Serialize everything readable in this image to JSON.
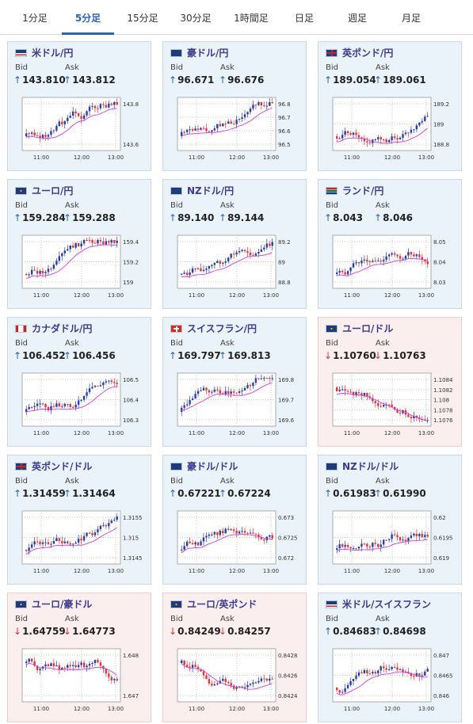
{
  "tabs": [
    {
      "label": "1分足",
      "active": false
    },
    {
      "label": "5分足",
      "active": true
    },
    {
      "label": "15分足",
      "active": false
    },
    {
      "label": "30分足",
      "active": false
    },
    {
      "label": "1時間足",
      "active": false
    },
    {
      "label": "日足",
      "active": false
    },
    {
      "label": "週足",
      "active": false
    },
    {
      "label": "月足",
      "active": false
    }
  ],
  "labels": {
    "bid": "Bid",
    "ask": "Ask"
  },
  "colors": {
    "up_arrow": "#2a63b2",
    "down_arrow": "#d23a3a",
    "up_card": "#eaf3fa",
    "down_card": "#fbeeee",
    "ma_line": "#d63be0",
    "candle_up": "#2a3fa6",
    "candle_down": "#e0353a"
  },
  "cards": [
    {
      "pair": "米ドル/円",
      "flag": "flag-us",
      "trend": "up",
      "bid": "143.810",
      "ask": "143.812",
      "chart_data": {
        "type": "candlestick",
        "x_ticks": [
          "11:00",
          "12:00",
          "13:00"
        ],
        "y_ticks": [
          "143.8",
          "143.6"
        ]
      }
    },
    {
      "pair": "豪ドル/円",
      "flag": "flag-au",
      "trend": "up",
      "bid": "96.671",
      "ask": "96.676",
      "chart_data": {
        "type": "candlestick",
        "x_ticks": [
          "11:00",
          "12:00",
          "13:00"
        ],
        "y_ticks": [
          "96.8",
          "96.7",
          "96.6",
          "96.5"
        ]
      }
    },
    {
      "pair": "英ポンド/円",
      "flag": "flag-gb",
      "trend": "up",
      "bid": "189.054",
      "ask": "189.061",
      "chart_data": {
        "type": "candlestick",
        "x_ticks": [
          "11:00",
          "12:00",
          "13:00"
        ],
        "y_ticks": [
          "189.2",
          "189",
          "188.8"
        ]
      }
    },
    {
      "pair": "ユーロ/円",
      "flag": "flag-eu",
      "trend": "up",
      "bid": "159.284",
      "ask": "159.288",
      "chart_data": {
        "type": "candlestick",
        "x_ticks": [
          "11:00",
          "12:00",
          "13:00"
        ],
        "y_ticks": [
          "159.4",
          "159.2",
          "159"
        ]
      }
    },
    {
      "pair": "NZドル/円",
      "flag": "flag-nz",
      "trend": "up",
      "bid": "89.140",
      "ask": "89.144",
      "chart_data": {
        "type": "candlestick",
        "x_ticks": [
          "11:00",
          "12:00",
          "13:00"
        ],
        "y_ticks": [
          "89.2",
          "89",
          "88.8"
        ]
      }
    },
    {
      "pair": "ランド/円",
      "flag": "flag-za",
      "trend": "up",
      "bid": "8.043",
      "ask": "8.046",
      "chart_data": {
        "type": "candlestick",
        "x_ticks": [
          "11:00",
          "12:00",
          "13:00"
        ],
        "y_ticks": [
          "8.05",
          "8.04",
          "8.03"
        ]
      }
    },
    {
      "pair": "カナダドル/円",
      "flag": "flag-ca",
      "trend": "up",
      "bid": "106.452",
      "ask": "106.456",
      "chart_data": {
        "type": "candlestick",
        "x_ticks": [
          "11:00",
          "12:00",
          "13:00"
        ],
        "y_ticks": [
          "106.5",
          "106.4",
          "106.3"
        ]
      }
    },
    {
      "pair": "スイスフラン/円",
      "flag": "flag-ch",
      "trend": "up",
      "bid": "169.797",
      "ask": "169.813",
      "chart_data": {
        "type": "candlestick",
        "x_ticks": [
          "11:00",
          "12:00",
          "13:00"
        ],
        "y_ticks": [
          "169.8",
          "169.7",
          "169.6"
        ]
      }
    },
    {
      "pair": "ユーロ/ドル",
      "flag": "flag-eu",
      "trend": "down",
      "bid": "1.10760",
      "ask": "1.10763",
      "chart_data": {
        "type": "candlestick",
        "x_ticks": [
          "11:00",
          "12:00",
          "13:00"
        ],
        "y_ticks": [
          "1.1084",
          "1.1082",
          "1.108",
          "1.1078",
          "1.1076"
        ]
      }
    },
    {
      "pair": "英ポンド/ドル",
      "flag": "flag-gb",
      "trend": "up",
      "bid": "1.31459",
      "ask": "1.31464",
      "chart_data": {
        "type": "candlestick",
        "x_ticks": [
          "11:00",
          "12:00",
          "13:00"
        ],
        "y_ticks": [
          "1.3155",
          "1.315",
          "1.3145"
        ]
      }
    },
    {
      "pair": "豪ドル/ドル",
      "flag": "flag-au",
      "trend": "up",
      "bid": "0.67221",
      "ask": "0.67224",
      "chart_data": {
        "type": "candlestick",
        "x_ticks": [
          "11:00",
          "12:00",
          "13:00"
        ],
        "y_ticks": [
          "0.673",
          "0.6725",
          "0.672"
        ]
      }
    },
    {
      "pair": "NZドル/ドル",
      "flag": "flag-nz",
      "trend": "up",
      "bid": "0.61983",
      "ask": "0.61990",
      "chart_data": {
        "type": "candlestick",
        "x_ticks": [
          "11:00",
          "12:00",
          "13:00"
        ],
        "y_ticks": [
          "0.62",
          "0.6195",
          "0.619"
        ]
      }
    },
    {
      "pair": "ユーロ/豪ドル",
      "flag": "flag-eu",
      "trend": "down",
      "bid": "1.64759",
      "ask": "1.64773",
      "chart_data": {
        "type": "candlestick",
        "x_ticks": [
          "11:00",
          "12:00",
          "13:00"
        ],
        "y_ticks": [
          "1.648",
          "1.647"
        ]
      }
    },
    {
      "pair": "ユーロ/英ポンド",
      "flag": "flag-eu",
      "trend": "down",
      "bid": "0.84249",
      "ask": "0.84257",
      "chart_data": {
        "type": "candlestick",
        "x_ticks": [
          "11:00",
          "12:00",
          "13:00"
        ],
        "y_ticks": [
          "0.8428",
          "0.8426",
          "0.8424"
        ]
      }
    },
    {
      "pair": "米ドル/スイスフラン",
      "flag": "flag-us",
      "trend": "up",
      "bid": "0.84683",
      "ask": "0.84698",
      "chart_data": {
        "type": "candlestick",
        "x_ticks": [
          "11:00",
          "12:00",
          "13:00"
        ],
        "y_ticks": [
          "0.847",
          "0.8465",
          "0.846"
        ]
      }
    }
  ]
}
